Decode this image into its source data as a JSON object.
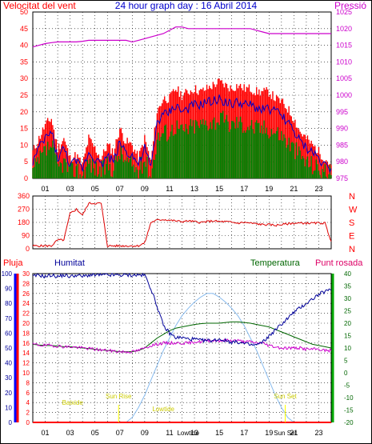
{
  "header": {
    "title": "24 hour graph day : 16 Abril 2014",
    "left_label": "Velocitat del vent",
    "right_label": "Pressió"
  },
  "colors": {
    "gust": "#ff0000",
    "wind": "#0000cc",
    "wind_min": "#008000",
    "pressure": "#cc00cc",
    "direction": "#dd0000",
    "rain": "#ff0000",
    "humidity": "#000099",
    "temperature": "#006600",
    "dewpoint": "#cc00cc",
    "solar": "#88bbee",
    "marker": "#ffff00",
    "grid": "#000000"
  },
  "x_axis": {
    "ticks": [
      "01",
      "03",
      "05",
      "07",
      "09",
      "11",
      "13",
      "15",
      "17",
      "19",
      "21",
      "23"
    ],
    "tick_hours": [
      1,
      3,
      5,
      7,
      9,
      11,
      13,
      15,
      17,
      19,
      21,
      23
    ]
  },
  "chart_data": [
    {
      "type": "line",
      "name": "wind-pressure",
      "title": "24 hour graph day : 16 Abril 2014",
      "left_axis_title": "Velocitat del vent",
      "right_axis_title": "Pressió",
      "x_hours": [
        0,
        0.5,
        1,
        1.5,
        2,
        2.5,
        3,
        3.5,
        4,
        4.5,
        5,
        5.5,
        6,
        6.5,
        7,
        7.5,
        8,
        8.5,
        9,
        9.5,
        10,
        10.5,
        11,
        11.5,
        12,
        12.5,
        13,
        13.5,
        14,
        14.5,
        15,
        15.5,
        16,
        16.5,
        17,
        17.5,
        18,
        18.5,
        19,
        19.5,
        20,
        20.5,
        21,
        21.5,
        22,
        22.5,
        23,
        23.5,
        24
      ],
      "y_left_ticks": [
        0,
        5,
        10,
        15,
        20,
        25,
        30,
        35,
        40,
        45,
        50
      ],
      "y_left_lim": [
        0,
        50
      ],
      "y_right_ticks": [
        975,
        980,
        985,
        990,
        995,
        1000,
        1005,
        1010,
        1015,
        1020,
        1025
      ],
      "y_right_lim": [
        975,
        1025
      ],
      "series": [
        {
          "key": "gust",
          "values": [
            8,
            12,
            16,
            18,
            9,
            12,
            6,
            7,
            4,
            12,
            9,
            6,
            10,
            8,
            15,
            11,
            10,
            6,
            12,
            5,
            20,
            24,
            24,
            27,
            25,
            26,
            27,
            26,
            27,
            28,
            29,
            28,
            27,
            28,
            27,
            27,
            26,
            26,
            26,
            24,
            23,
            21,
            18,
            14,
            12,
            10,
            8,
            6,
            4
          ]
        },
        {
          "key": "wind",
          "values": [
            5,
            9,
            12,
            14,
            6,
            9,
            4,
            5,
            3,
            8,
            6,
            4,
            7,
            5,
            11,
            8,
            7,
            4,
            9,
            3,
            17,
            19,
            20,
            22,
            20,
            21,
            22,
            22,
            23,
            23,
            24,
            23,
            22,
            23,
            22,
            22,
            21,
            21,
            21,
            20,
            19,
            17,
            14,
            11,
            9,
            8,
            6,
            4,
            3
          ]
        },
        {
          "key": "wind_min",
          "values": [
            2,
            5,
            8,
            10,
            3,
            5,
            2,
            3,
            1,
            5,
            3,
            2,
            4,
            3,
            8,
            5,
            4,
            2,
            6,
            1,
            12,
            14,
            14,
            16,
            14,
            15,
            16,
            16,
            17,
            17,
            18,
            17,
            16,
            17,
            16,
            16,
            15,
            15,
            15,
            14,
            13,
            11,
            9,
            7,
            5,
            4,
            3,
            2,
            1
          ]
        },
        {
          "key": "pressure",
          "values": [
            1014.5,
            1015,
            1015.5,
            1015.8,
            1016,
            1016,
            1016,
            1016,
            1016.2,
            1016.5,
            1016.5,
            1016.5,
            1016.5,
            1016.5,
            1016.5,
            1016.5,
            1016,
            1016.5,
            1017,
            1017.5,
            1018,
            1018.5,
            1019.5,
            1020.5,
            1020.5,
            1020,
            1020,
            1020,
            1020,
            1020,
            1020,
            1020,
            1020,
            1020,
            1020,
            1020,
            1019.5,
            1019,
            1018.5,
            1018.5,
            1018.5,
            1018.5,
            1018.5,
            1018.5,
            1018.5,
            1018.5,
            1018.5,
            1018.5,
            1018.5
          ]
        }
      ]
    },
    {
      "type": "line",
      "name": "wind-direction",
      "y_ticks": [
        0,
        90,
        180,
        270,
        360
      ],
      "y_lim": [
        0,
        360
      ],
      "right_labels": [
        "N",
        "W",
        "S",
        "E",
        "N"
      ],
      "x_hours": [
        0,
        0.5,
        1,
        1.5,
        2,
        2.5,
        3,
        3.5,
        4,
        4.5,
        5,
        5.5,
        6,
        6.5,
        7,
        7.5,
        8,
        8.5,
        9,
        9.5,
        10,
        10.5,
        11,
        11.5,
        12,
        12.5,
        13,
        13.5,
        14,
        14.5,
        15,
        15.5,
        16,
        16.5,
        17,
        17.5,
        18,
        18.5,
        19,
        19.5,
        20,
        20.5,
        21,
        21.5,
        22,
        22.5,
        23,
        23.5,
        24
      ],
      "values": [
        20,
        20,
        20,
        20,
        60,
        60,
        240,
        270,
        230,
        310,
        310,
        310,
        20,
        20,
        20,
        20,
        20,
        20,
        40,
        180,
        195,
        200,
        195,
        190,
        185,
        190,
        185,
        180,
        185,
        190,
        185,
        185,
        180,
        175,
        180,
        175,
        170,
        165,
        165,
        160,
        165,
        170,
        175,
        175,
        175,
        175,
        175,
        175,
        50
      ]
    },
    {
      "type": "line",
      "name": "rain-humidity-temperature",
      "left_labels": [
        "Pluja",
        "Humitat",
        "Temperatura",
        "Punt rosada"
      ],
      "y_rain_ticks": [
        0,
        2,
        4,
        6,
        8,
        10,
        12,
        14,
        16,
        18,
        20,
        22,
        24,
        26,
        28,
        30
      ],
      "y_rain_lim": [
        0,
        30
      ],
      "y_humidity_ticks": [
        0,
        10,
        20,
        30,
        40,
        50,
        60,
        70,
        80,
        90,
        100
      ],
      "y_humidity_lim": [
        0,
        100
      ],
      "y_temp_ticks": [
        -20,
        -15,
        -10,
        -5,
        0,
        5,
        10,
        15,
        20,
        25,
        30,
        35,
        40
      ],
      "y_temp_lim": [
        -20,
        40
      ],
      "x_hours": [
        0,
        0.5,
        1,
        1.5,
        2,
        2.5,
        3,
        3.5,
        4,
        4.5,
        5,
        5.5,
        6,
        6.5,
        7,
        7.5,
        8,
        8.5,
        9,
        9.5,
        10,
        10.5,
        11,
        11.5,
        12,
        12.5,
        13,
        13.5,
        14,
        14.5,
        15,
        15.5,
        16,
        16.5,
        17,
        17.5,
        18,
        18.5,
        19,
        19.5,
        20,
        20.5,
        21,
        21.5,
        22,
        22.5,
        23,
        23.5,
        24
      ],
      "series": [
        {
          "key": "humidity",
          "axis": "humidity",
          "values": [
            98,
            99,
            98,
            99,
            98,
            99,
            98,
            99,
            98,
            99,
            99,
            99,
            99,
            99,
            99,
            99,
            99,
            99,
            99,
            90,
            78,
            65,
            60,
            57,
            57,
            56,
            56,
            55,
            55,
            55,
            56,
            55,
            54,
            54,
            53,
            52,
            52,
            54,
            58,
            62,
            66,
            70,
            74,
            77,
            80,
            83,
            86,
            88,
            89
          ]
        },
        {
          "key": "temperature",
          "axis": "temp",
          "values": [
            11.5,
            11.2,
            11,
            11,
            10.8,
            10.5,
            10.5,
            10.3,
            10,
            9.8,
            9.5,
            9.2,
            9,
            8.8,
            8.5,
            8.5,
            8.5,
            9,
            10,
            12,
            14,
            15.5,
            17,
            18,
            18.5,
            19,
            19.5,
            19.8,
            20,
            20,
            20,
            20.3,
            20.5,
            20.5,
            20.3,
            20,
            19.5,
            19,
            18.5,
            17.5,
            16.5,
            15.5,
            14.5,
            13.5,
            12.5,
            11.5,
            11,
            10.5,
            10
          ]
        },
        {
          "key": "dewpoint",
          "axis": "temp",
          "values": [
            11.5,
            11.2,
            11,
            11,
            10.8,
            10.5,
            10.5,
            10.3,
            10,
            9.8,
            9.5,
            9.2,
            9,
            8.8,
            8.5,
            8.5,
            8.5,
            9,
            10,
            11,
            11.5,
            12,
            12,
            12,
            12,
            12,
            12.5,
            12.5,
            13,
            13,
            13,
            13,
            13,
            13,
            12.5,
            12.5,
            12,
            12,
            11,
            10.5,
            10,
            10,
            10,
            10,
            9.5,
            9.5,
            9.5,
            9,
            9
          ]
        },
        {
          "key": "solar",
          "axis": "temp",
          "values": [
            -20,
            -20,
            -20,
            -20,
            -20,
            -20,
            -20,
            -20,
            -20,
            -20,
            -20,
            -20,
            -20,
            -20,
            -20,
            -20,
            -18,
            -14,
            -9,
            -3,
            3,
            9,
            14,
            19,
            23,
            26,
            28.5,
            30.5,
            32,
            32,
            30.5,
            28.5,
            26,
            23,
            19,
            14,
            9,
            3,
            -3,
            -9,
            -14,
            -18,
            -20,
            -20,
            -20,
            -20,
            -20,
            -20,
            -20
          ]
        },
        {
          "key": "rain",
          "axis": "rain",
          "values": [
            0,
            0,
            0,
            0,
            0,
            0,
            0,
            0,
            0,
            0,
            0,
            0,
            0,
            0,
            0,
            0,
            0,
            0,
            0,
            0,
            0,
            0,
            0,
            0,
            0,
            0,
            0,
            0,
            0,
            0,
            0,
            0,
            0,
            0,
            0,
            0,
            0,
            0,
            0,
            0,
            0,
            0,
            0,
            0,
            0,
            0,
            0,
            0,
            0
          ]
        }
      ],
      "markers": [
        {
          "label": "Baixide",
          "hour": 3.2
        },
        {
          "label": "Sun Rise",
          "hour": 6.9
        },
        {
          "label": "Lowtide",
          "hour": 10.5
        },
        {
          "label": "Lowtide",
          "hour": 12.5
        },
        {
          "label": "Sun Set",
          "hour": 20.3
        },
        {
          "label": "Sun Set",
          "hour": 20.3
        }
      ]
    }
  ]
}
